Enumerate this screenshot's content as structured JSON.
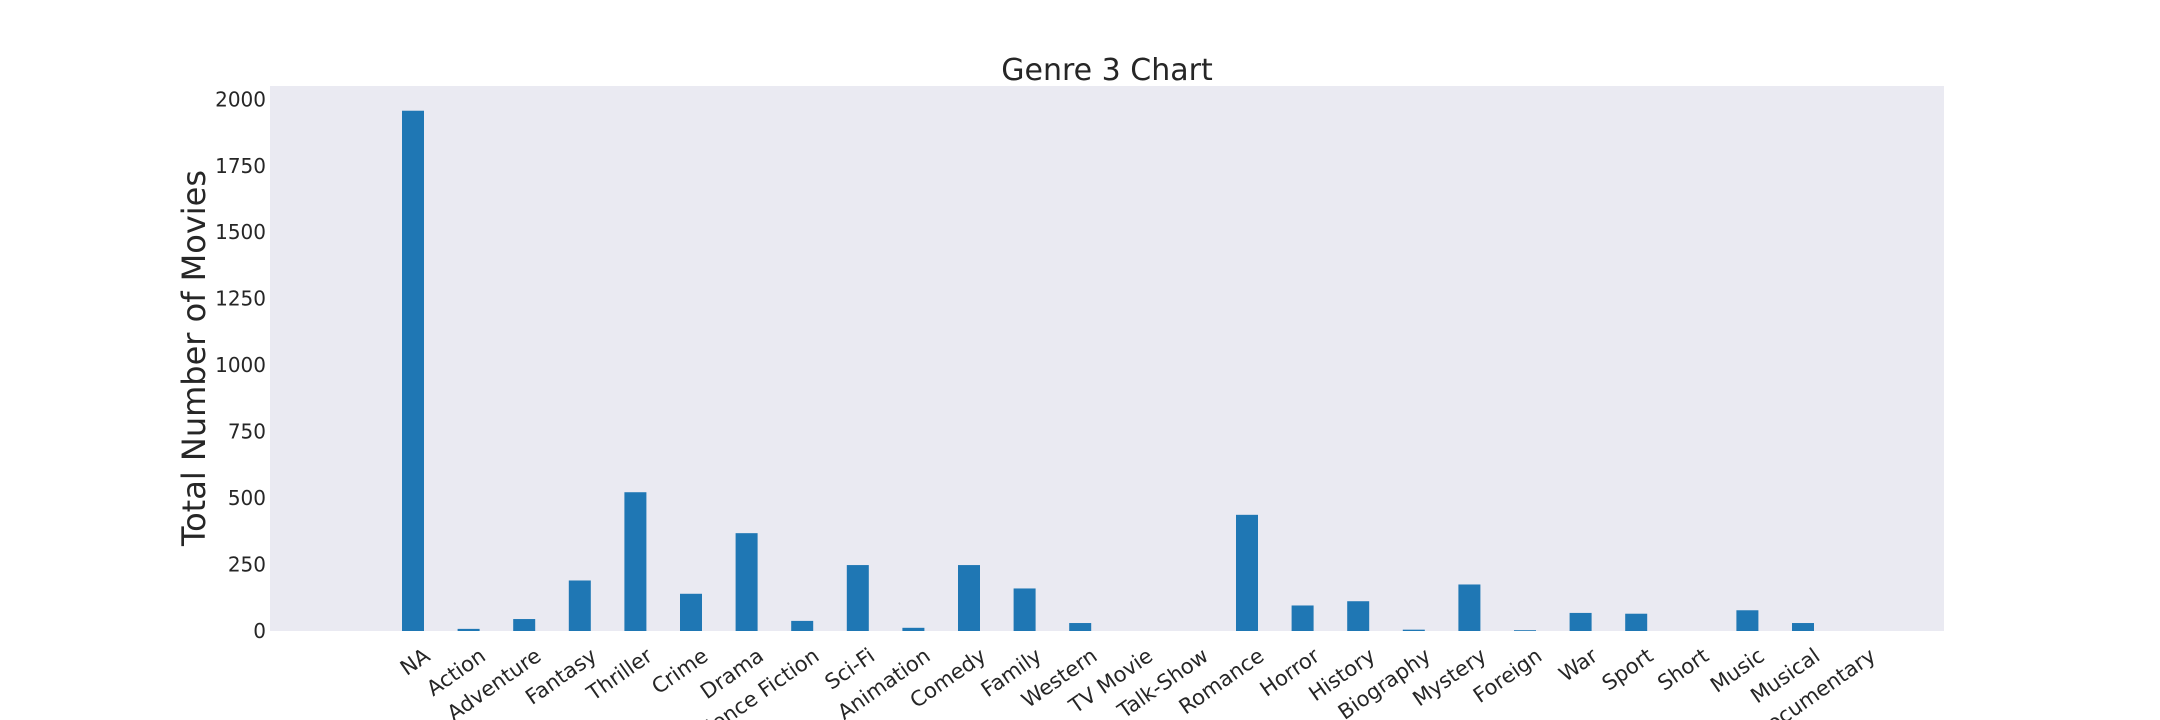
{
  "chart_data": {
    "type": "bar",
    "title": "Genre 3 Chart",
    "xlabel": "",
    "ylabel": "Total Number of Movies",
    "ylim": [
      0,
      2050
    ],
    "yticks": [
      "0",
      "250",
      "500",
      "750",
      "1000",
      "1250",
      "1500",
      "1750",
      "2000"
    ],
    "ytick_values": [
      0,
      250,
      500,
      750,
      1000,
      1250,
      1500,
      1750,
      2000
    ],
    "grid": false,
    "categories": [
      "NA",
      "Action",
      "Adventure",
      "Fantasy",
      "Thriller",
      "Crime",
      "Drama",
      "Science Fiction",
      "Sci-Fi",
      "Animation",
      "Comedy",
      "Family",
      "Western",
      "TV Movie",
      "Talk-Show",
      "Romance",
      "Horror",
      "History",
      "Biography",
      "Mystery",
      "Foreign",
      "War",
      "Sport",
      "Short",
      "Music",
      "Musical",
      "Documentary"
    ],
    "values": [
      1957,
      8,
      45,
      190,
      522,
      140,
      368,
      38,
      248,
      12,
      248,
      160,
      30,
      0,
      0,
      437,
      96,
      112,
      5,
      175,
      3,
      68,
      65,
      0,
      78,
      30,
      0
    ],
    "colors": {
      "bar": "#1f77b4",
      "plot_background": "#eaeaf2",
      "text": "#262626"
    }
  }
}
